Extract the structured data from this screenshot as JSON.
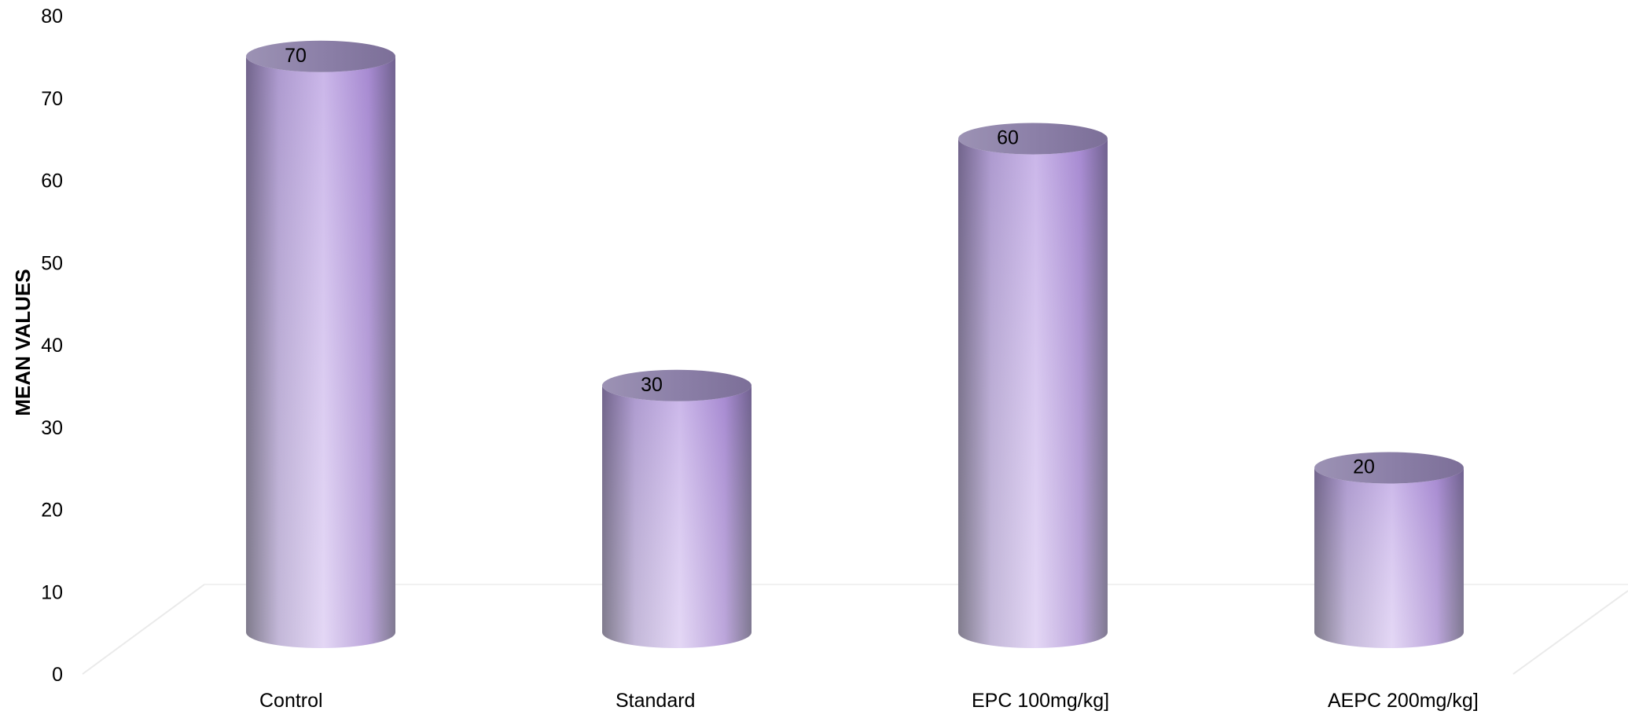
{
  "chart_data": {
    "type": "bar",
    "style": "3d-cylinder",
    "categories": [
      "Control",
      "Standard",
      "EPC 100mg/kg]",
      "AEPC 200mg/kg]"
    ],
    "series": [
      {
        "values": [
          70,
          30,
          60,
          20
        ]
      }
    ],
    "data_labels": [
      "70",
      "30",
      "60",
      "20"
    ],
    "title": "",
    "xlabel": "",
    "ylabel": "MEAN VALUES",
    "ylim": [
      0,
      80
    ],
    "yticks": [
      0,
      10,
      20,
      30,
      40,
      50,
      60,
      70,
      80
    ],
    "grid": false,
    "legend": "none",
    "colors": {
      "bar_light": "#e7dcf6",
      "bar_mid": "#c7ade5",
      "bar_dark": "#726a84",
      "bar_top": "#8c7ea8",
      "floor_line": "#e6e6e6"
    }
  }
}
